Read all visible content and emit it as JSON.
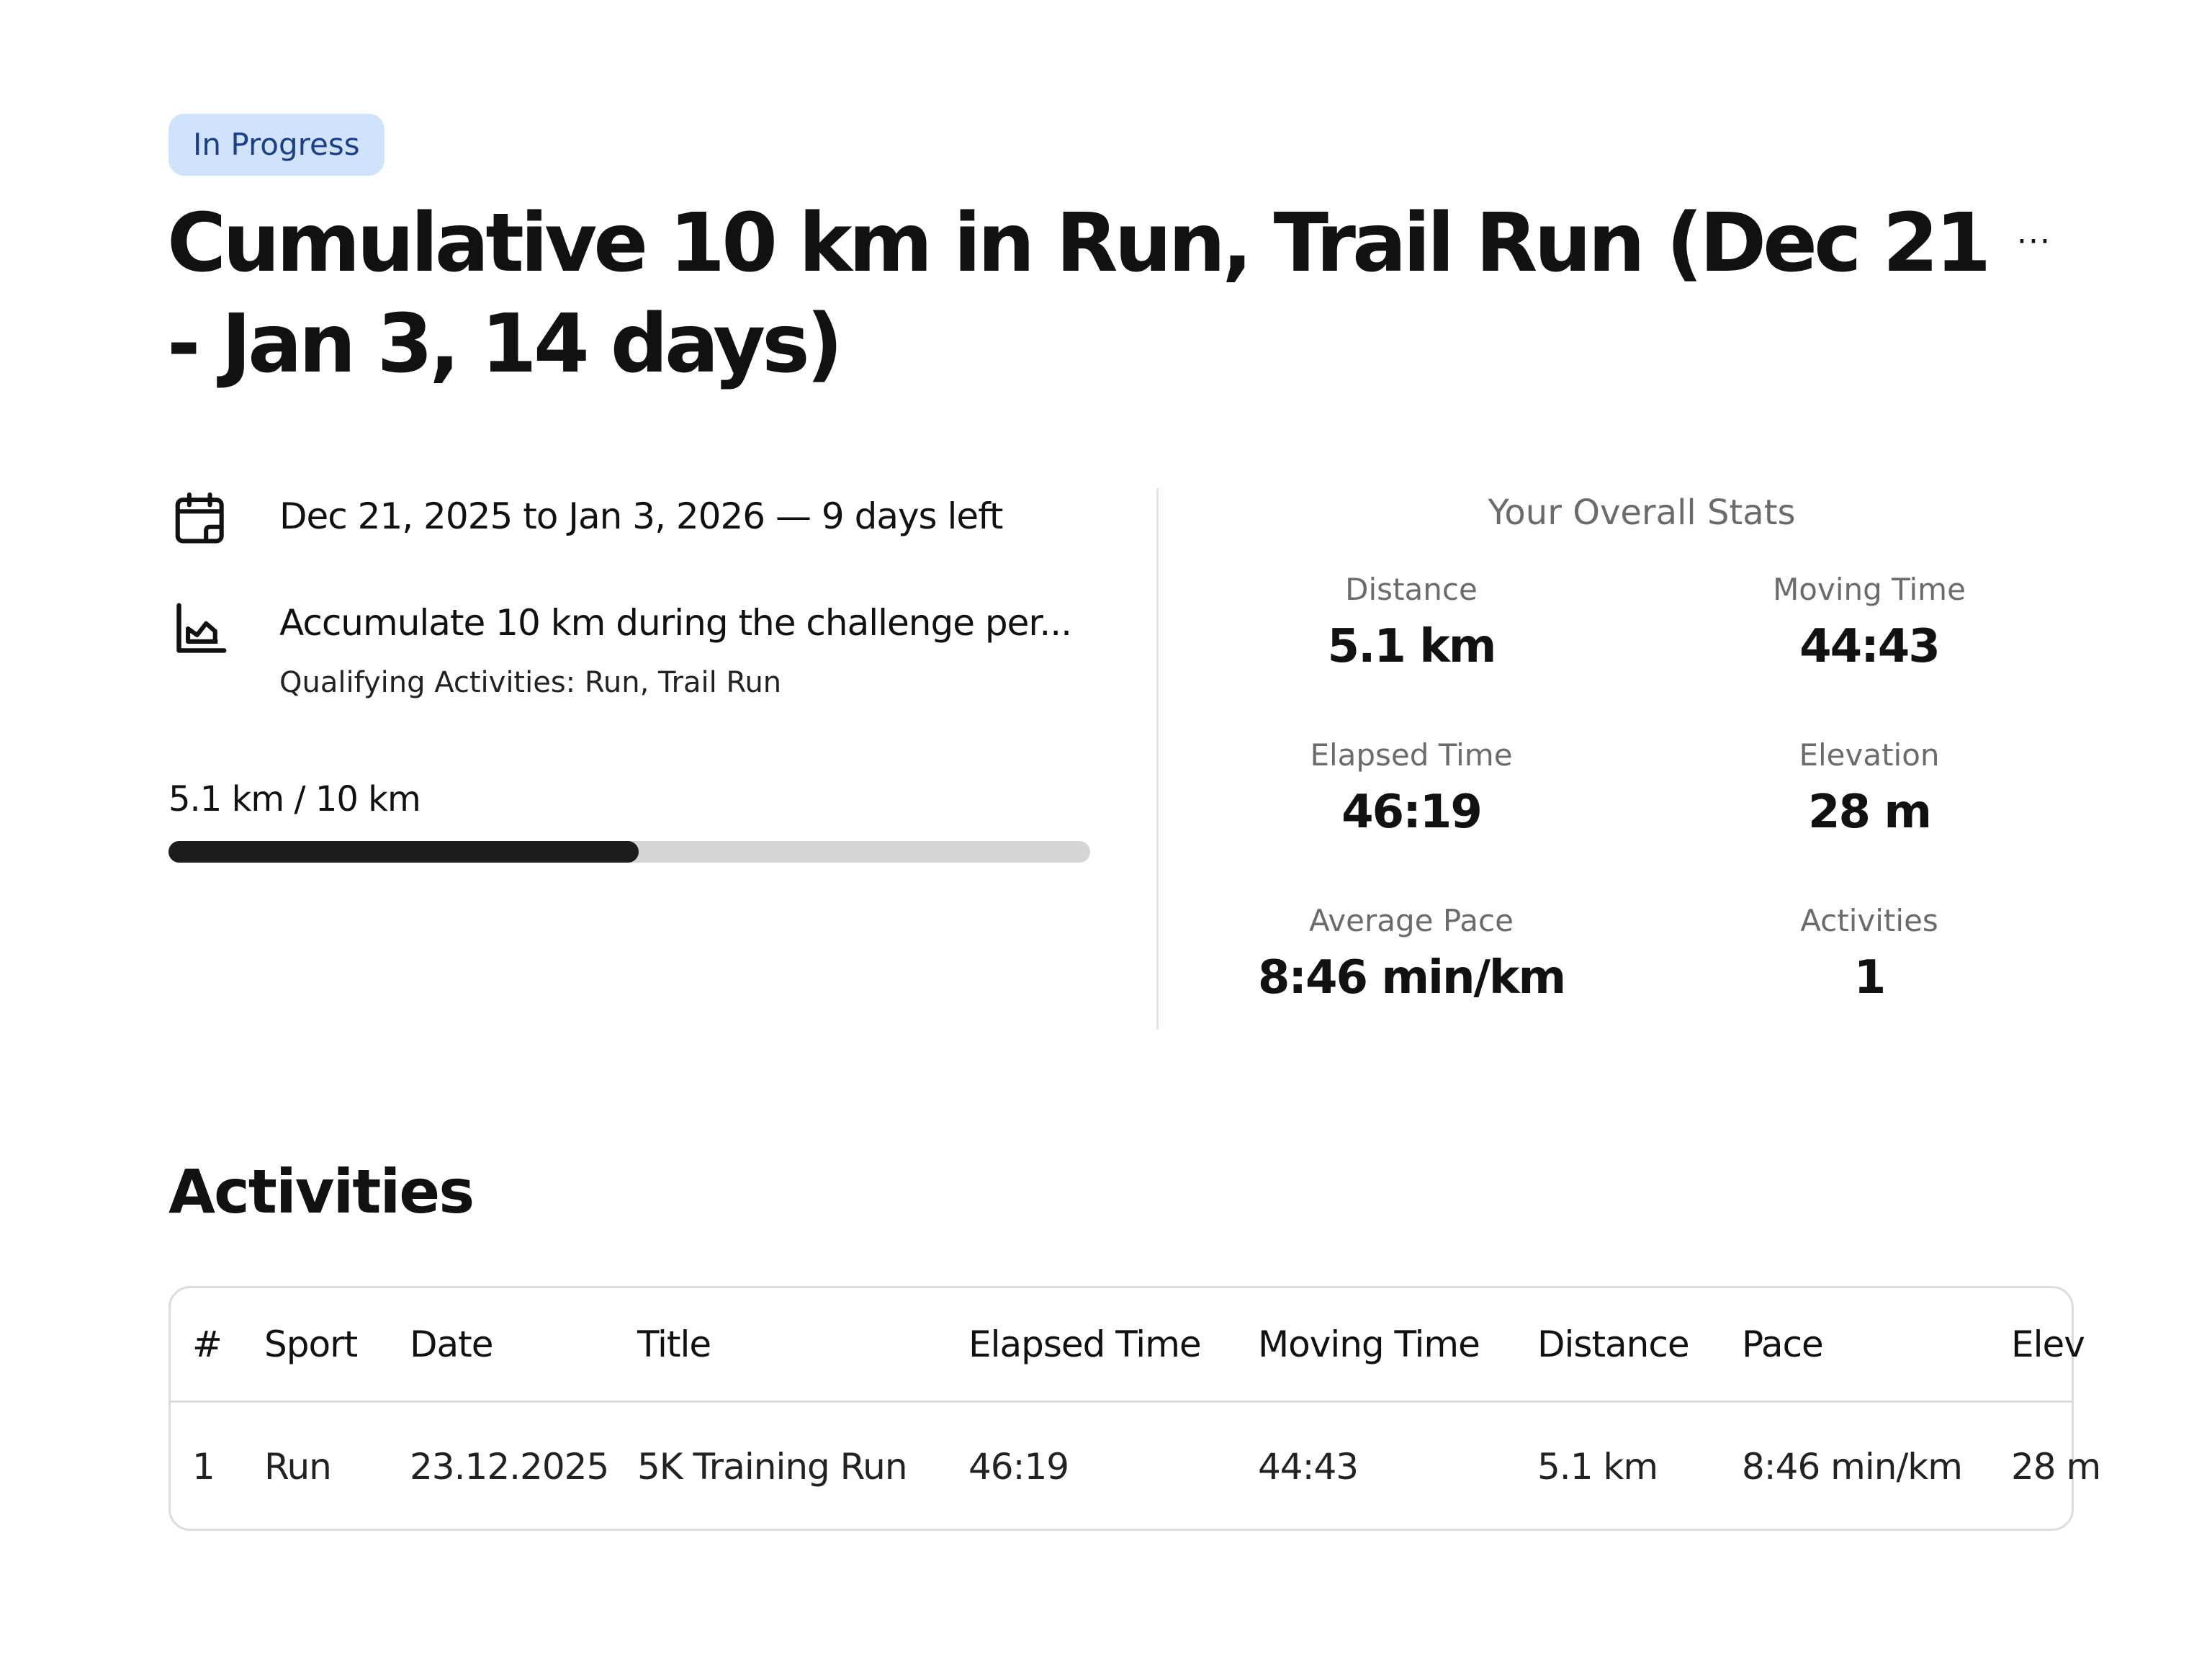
{
  "status_badge": "In Progress",
  "title": "Cumulative 10 km in Run, Trail Run (Dec 21 - Jan 3, 14 days)",
  "more_label": "···",
  "info": {
    "date_range": "Dec 21, 2025 to Jan 3, 2026 — 9 days left",
    "goal": "Accumulate 10 km during the challenge per...",
    "qualifying": "Qualifying Activities: Run, Trail Run",
    "calendar_icon": "calendar-icon",
    "chart_icon": "chart-icon"
  },
  "progress": {
    "label": "5.1 km / 10 km",
    "fraction": 0.51
  },
  "stats": {
    "title": "Your Overall Stats",
    "items": [
      {
        "label": "Distance",
        "value": "5.1 km"
      },
      {
        "label": "Moving Time",
        "value": "44:43"
      },
      {
        "label": "Elapsed Time",
        "value": "46:19"
      },
      {
        "label": "Elevation",
        "value": "28 m"
      },
      {
        "label": "Average Pace",
        "value": "8:46 min/km"
      },
      {
        "label": "Activities",
        "value": "1"
      }
    ]
  },
  "activities": {
    "heading": "Activities",
    "columns": [
      "#",
      "Sport",
      "Date",
      "Title",
      "Elapsed Time",
      "Moving Time",
      "Distance",
      "Pace",
      "Elev"
    ],
    "rows": [
      [
        "1",
        "Run",
        "23.12.2025",
        "5K Training Run",
        "46:19",
        "44:43",
        "5.1 km",
        "8:46 min/km",
        "28 m"
      ]
    ]
  },
  "colors": {
    "badge_bg": "#cfe3fb",
    "badge_text": "#1d3f86",
    "progress_fill": "#1c1c1c",
    "progress_track": "#d6d6d6"
  }
}
